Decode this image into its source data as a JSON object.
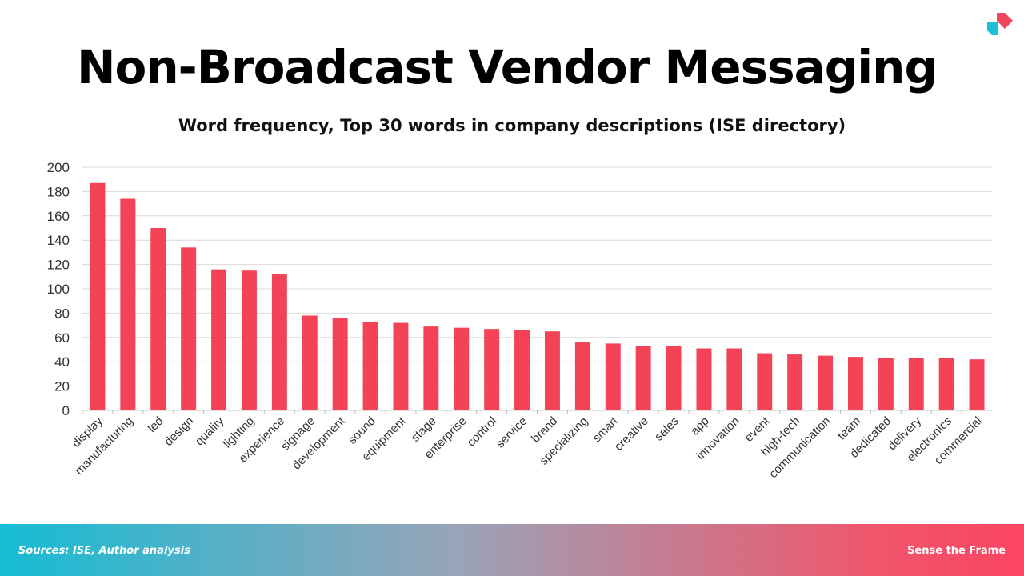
{
  "slide": {
    "title": "Non-Broadcast Vendor Messaging",
    "source": "Sources: ISE, Author analysis",
    "brand": "Sense the Frame"
  },
  "colors": {
    "bar": "#f44356",
    "grid": "#d9d9d9",
    "logo_red": "#f0465d",
    "logo_cyan": "#1bbfd6"
  },
  "chart_data": {
    "type": "bar",
    "title": "Word frequency, Top 30 words in company descriptions (ISE directory)",
    "xlabel": "",
    "ylabel": "",
    "ylim": [
      0,
      200
    ],
    "yticks": [
      0,
      20,
      40,
      60,
      80,
      100,
      120,
      140,
      160,
      180,
      200
    ],
    "grid": true,
    "categories": [
      "display",
      "manufacturing",
      "led",
      "design",
      "quality",
      "lighting",
      "experience",
      "signage",
      "development",
      "sound",
      "equipment",
      "stage",
      "enterprise",
      "control",
      "service",
      "brand",
      "specializing",
      "smart",
      "creative",
      "sales",
      "app",
      "innovation",
      "event",
      "high-tech",
      "communication",
      "team",
      "dedicated",
      "delivery",
      "electronics",
      "commercial"
    ],
    "values": [
      187,
      174,
      150,
      134,
      116,
      115,
      112,
      78,
      76,
      73,
      72,
      69,
      68,
      67,
      66,
      65,
      56,
      55,
      53,
      53,
      51,
      51,
      47,
      46,
      45,
      44,
      43,
      43,
      43,
      42
    ]
  }
}
